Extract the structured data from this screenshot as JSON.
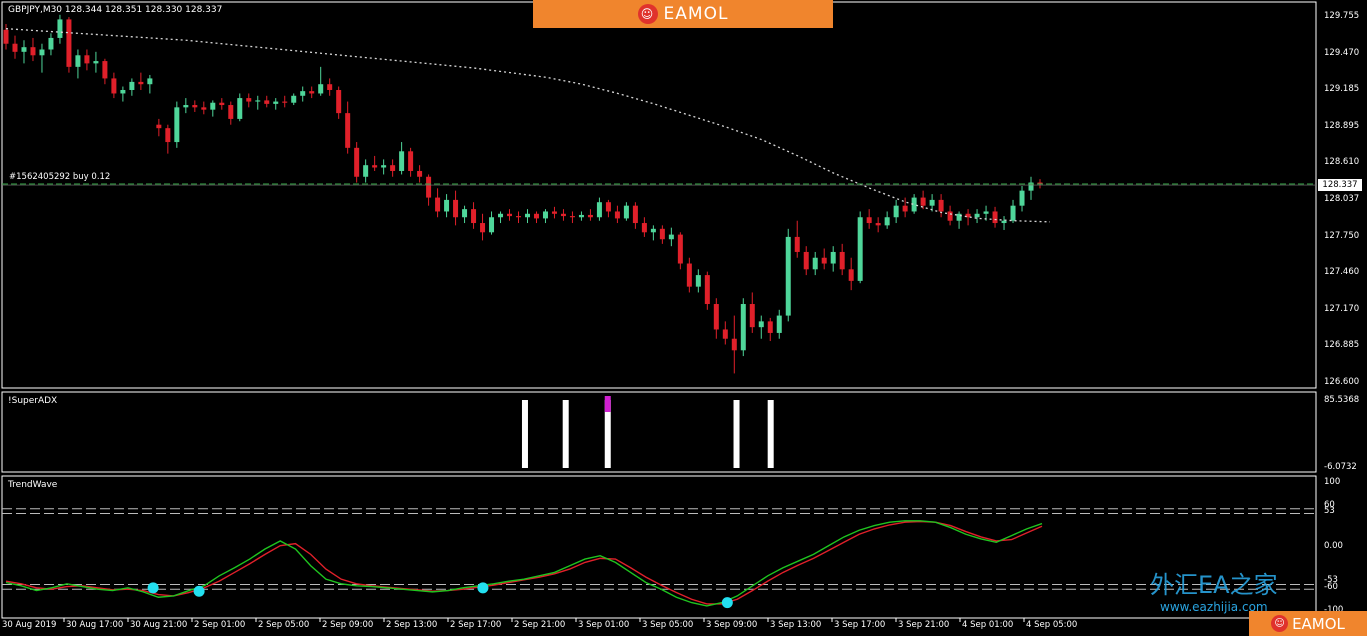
{
  "header": {
    "symbol_info": "GBPJPY,M30  128.344 128.351 128.330 128.337"
  },
  "banner": {
    "text": "EAMOL",
    "logo_icon": "robot-icon"
  },
  "corner_banner": {
    "text": "EAMOL"
  },
  "watermark": {
    "text": "外汇EA之家",
    "url": "www.eazhijia.com"
  },
  "order_line": {
    "label": "#1562405292 buy 0.12"
  },
  "current_price": "128.337",
  "panes": {
    "main": {
      "y_labels": [
        "129.755",
        "129.470",
        "129.185",
        "128.895",
        "128.610",
        "128.037",
        "127.750",
        "127.460",
        "127.170",
        "126.885",
        "126.600"
      ]
    },
    "adx": {
      "label": "!SuperADX",
      "y_labels": [
        "85.5368",
        "-6.0732"
      ]
    },
    "trend": {
      "label": "TrendWave",
      "y_labels": [
        "100",
        "60",
        "53",
        "0.00",
        "-53",
        "-60",
        "-100"
      ]
    }
  },
  "x_labels": [
    "30 Aug 2019",
    "30 Aug 17:00",
    "30 Aug 21:00",
    "2 Sep 01:00",
    "2 Sep 05:00",
    "2 Sep 09:00",
    "2 Sep 13:00",
    "2 Sep 17:00",
    "2 Sep 21:00",
    "3 Sep 01:00",
    "3 Sep 05:00",
    "3 Sep 09:00",
    "3 Sep 13:00",
    "3 Sep 17:00",
    "3 Sep 21:00",
    "4 Sep 01:00",
    "4 Sep 05:00"
  ],
  "colors": {
    "bull": "#4fd69a",
    "bear": "#e0202a",
    "ma": "#d8d8d8",
    "order": "#3aa84a",
    "wave_green": "#1fc41f",
    "wave_red": "#e0202a",
    "dot": "#23e0f0",
    "adx_bar": "#ffffff",
    "adx_top": "#d020d0"
  },
  "chart_data": [
    {
      "type": "candlestick",
      "y_range": [
        126.6,
        129.755
      ],
      "candles": [
        [
          129.67,
          129.72,
          129.5,
          129.55
        ],
        [
          129.55,
          129.62,
          129.42,
          129.48
        ],
        [
          129.48,
          129.58,
          129.38,
          129.52
        ],
        [
          129.52,
          129.6,
          129.4,
          129.45
        ],
        [
          129.45,
          129.55,
          129.3,
          129.5
        ],
        [
          129.5,
          129.64,
          129.45,
          129.6
        ],
        [
          129.6,
          129.8,
          129.55,
          129.76
        ],
        [
          129.76,
          129.78,
          129.3,
          129.35
        ],
        [
          129.35,
          129.5,
          129.25,
          129.45
        ],
        [
          129.45,
          129.5,
          129.32,
          129.38
        ],
        [
          129.38,
          129.48,
          129.3,
          129.4
        ],
        [
          129.4,
          129.42,
          129.2,
          129.25
        ],
        [
          129.25,
          129.3,
          129.08,
          129.12
        ],
        [
          129.12,
          129.18,
          129.05,
          129.15
        ],
        [
          129.15,
          129.25,
          129.1,
          129.22
        ],
        [
          129.22,
          129.3,
          129.15,
          129.2
        ],
        [
          129.2,
          129.28,
          129.12,
          129.25
        ],
        [
          128.85,
          128.9,
          128.75,
          128.82
        ],
        [
          128.82,
          128.85,
          128.6,
          128.7
        ],
        [
          128.7,
          129.05,
          128.65,
          129.0
        ],
        [
          129.0,
          129.08,
          128.95,
          129.02
        ],
        [
          129.02,
          129.06,
          128.96,
          129.0
        ],
        [
          129.0,
          129.05,
          128.94,
          128.98
        ],
        [
          128.98,
          129.06,
          128.92,
          129.04
        ],
        [
          129.04,
          129.08,
          128.98,
          129.02
        ],
        [
          129.02,
          129.05,
          128.85,
          128.9
        ],
        [
          128.9,
          129.12,
          128.88,
          129.08
        ],
        [
          129.08,
          129.12,
          129.0,
          129.05
        ],
        [
          129.05,
          129.1,
          128.98,
          129.06
        ],
        [
          129.06,
          129.1,
          129.0,
          129.03
        ],
        [
          129.03,
          129.08,
          128.98,
          129.05
        ],
        [
          129.05,
          129.1,
          129.0,
          129.04
        ],
        [
          129.04,
          129.12,
          129.02,
          129.1
        ],
        [
          129.1,
          129.18,
          129.05,
          129.14
        ],
        [
          129.14,
          129.18,
          129.08,
          129.12
        ],
        [
          129.12,
          129.35,
          129.1,
          129.2
        ],
        [
          129.2,
          129.25,
          129.1,
          129.15
        ],
        [
          129.15,
          129.18,
          128.9,
          128.95
        ],
        [
          128.95,
          129.05,
          128.6,
          128.65
        ],
        [
          128.65,
          128.7,
          128.35,
          128.4
        ],
        [
          128.4,
          128.55,
          128.35,
          128.5
        ],
        [
          128.5,
          128.58,
          128.45,
          128.48
        ],
        [
          128.48,
          128.55,
          128.42,
          128.5
        ],
        [
          128.5,
          128.55,
          128.4,
          128.45
        ],
        [
          128.45,
          128.7,
          128.42,
          128.62
        ],
        [
          128.62,
          128.65,
          128.4,
          128.45
        ],
        [
          128.45,
          128.5,
          128.35,
          128.4
        ],
        [
          128.4,
          128.42,
          128.15,
          128.22
        ],
        [
          128.22,
          128.3,
          128.05,
          128.1
        ],
        [
          128.1,
          128.25,
          128.05,
          128.2
        ],
        [
          128.2,
          128.28,
          127.98,
          128.05
        ],
        [
          128.05,
          128.15,
          128.0,
          128.12
        ],
        [
          128.12,
          128.18,
          127.95,
          128.0
        ],
        [
          128.0,
          128.08,
          127.85,
          127.92
        ],
        [
          127.92,
          128.1,
          127.9,
          128.05
        ],
        [
          128.05,
          128.1,
          128.0,
          128.08
        ],
        [
          128.08,
          128.12,
          128.02,
          128.06
        ],
        [
          128.06,
          128.1,
          128.0,
          128.05
        ],
        [
          128.05,
          128.12,
          128.0,
          128.08
        ],
        [
          128.08,
          128.1,
          128.0,
          128.04
        ],
        [
          128.04,
          128.12,
          128.0,
          128.1
        ],
        [
          128.1,
          128.14,
          128.04,
          128.08
        ],
        [
          128.08,
          128.12,
          128.02,
          128.06
        ],
        [
          128.06,
          128.1,
          128.0,
          128.05
        ],
        [
          128.05,
          128.1,
          128.02,
          128.07
        ],
        [
          128.07,
          128.12,
          128.02,
          128.05
        ],
        [
          128.05,
          128.22,
          128.02,
          128.18
        ],
        [
          128.18,
          128.2,
          128.05,
          128.1
        ],
        [
          128.1,
          128.15,
          128.0,
          128.04
        ],
        [
          128.04,
          128.18,
          128.02,
          128.15
        ],
        [
          128.15,
          128.18,
          127.95,
          128.0
        ],
        [
          128.0,
          128.05,
          127.88,
          127.92
        ],
        [
          127.92,
          127.98,
          127.85,
          127.95
        ],
        [
          127.95,
          127.98,
          127.82,
          127.86
        ],
        [
          127.86,
          127.96,
          127.8,
          127.9
        ],
        [
          127.9,
          127.92,
          127.6,
          127.65
        ],
        [
          127.65,
          127.7,
          127.4,
          127.45
        ],
        [
          127.45,
          127.6,
          127.4,
          127.55
        ],
        [
          127.55,
          127.58,
          127.25,
          127.3
        ],
        [
          127.3,
          127.35,
          127.0,
          127.08
        ],
        [
          127.08,
          127.15,
          126.95,
          127.0
        ],
        [
          127.0,
          127.2,
          126.7,
          126.9
        ],
        [
          126.9,
          127.35,
          126.85,
          127.3
        ],
        [
          127.3,
          127.4,
          127.05,
          127.1
        ],
        [
          127.1,
          127.2,
          127.0,
          127.15
        ],
        [
          127.15,
          127.18,
          126.98,
          127.05
        ],
        [
          127.05,
          127.25,
          127.0,
          127.2
        ],
        [
          127.2,
          127.95,
          127.15,
          127.88
        ],
        [
          127.88,
          128.02,
          127.7,
          127.75
        ],
        [
          127.75,
          127.8,
          127.55,
          127.6
        ],
        [
          127.6,
          127.75,
          127.55,
          127.7
        ],
        [
          127.7,
          127.78,
          127.6,
          127.65
        ],
        [
          127.65,
          127.8,
          127.58,
          127.75
        ],
        [
          127.75,
          127.82,
          127.55,
          127.6
        ],
        [
          127.6,
          127.7,
          127.42,
          127.5
        ],
        [
          127.5,
          128.1,
          127.48,
          128.05
        ],
        [
          128.05,
          128.12,
          127.95,
          128.0
        ],
        [
          128.0,
          128.05,
          127.92,
          127.98
        ],
        [
          127.98,
          128.1,
          127.95,
          128.05
        ],
        [
          128.05,
          128.2,
          128.0,
          128.15
        ],
        [
          128.15,
          128.22,
          128.05,
          128.1
        ],
        [
          128.1,
          128.25,
          128.08,
          128.22
        ],
        [
          128.22,
          128.28,
          128.12,
          128.15
        ],
        [
          128.15,
          128.25,
          128.1,
          128.2
        ],
        [
          128.2,
          128.25,
          128.05,
          128.1
        ],
        [
          128.1,
          128.15,
          127.98,
          128.02
        ],
        [
          128.02,
          128.1,
          127.95,
          128.08
        ],
        [
          128.08,
          128.12,
          127.98,
          128.05
        ],
        [
          128.05,
          128.12,
          128.0,
          128.08
        ],
        [
          128.08,
          128.15,
          128.02,
          128.1
        ],
        [
          128.1,
          128.14,
          127.96,
          128.0
        ],
        [
          128.0,
          128.06,
          127.94,
          128.02
        ],
        [
          128.02,
          128.2,
          128.0,
          128.15
        ],
        [
          128.15,
          128.32,
          128.1,
          128.28
        ],
        [
          128.28,
          128.4,
          128.2,
          128.35
        ],
        [
          128.35,
          128.38,
          128.3,
          128.337
        ]
      ],
      "moving_average": [
        129.68,
        129.66,
        129.64,
        129.62,
        129.6,
        129.58,
        129.55,
        129.52,
        129.49,
        129.46,
        129.43,
        129.4,
        129.37,
        129.34,
        129.3,
        129.26,
        129.2,
        129.12,
        129.03,
        128.93,
        128.83,
        128.72,
        128.58,
        128.43,
        128.3,
        128.18,
        128.09,
        128.04,
        128.02,
        128.01
      ],
      "order_price": 128.337
    },
    {
      "type": "bar",
      "name": "!SuperADX",
      "y_range": [
        -6.0732,
        85.5368
      ],
      "bars": [
        {
          "pos": 0.398,
          "value": 1,
          "top": 0
        },
        {
          "pos": 0.429,
          "value": 1,
          "top": 0
        },
        {
          "pos": 0.461,
          "value": 1,
          "top": 1
        },
        {
          "pos": 0.559,
          "value": 1,
          "top": 0
        },
        {
          "pos": 0.585,
          "value": 1,
          "top": 0
        }
      ]
    },
    {
      "type": "line",
      "name": "TrendWave",
      "y_range": [
        -100,
        100
      ],
      "levels": [
        60,
        53,
        -53,
        -60
      ],
      "green": [
        -50,
        -55,
        -62,
        -58,
        -52,
        -56,
        -60,
        -62,
        -58,
        -64,
        -72,
        -70,
        -62,
        -55,
        -40,
        -28,
        -15,
        0,
        12,
        0,
        -25,
        -45,
        -52,
        -55,
        -56,
        -58,
        -60,
        -62,
        -64,
        -62,
        -58,
        -55,
        -52,
        -48,
        -45,
        -40,
        -35,
        -25,
        -15,
        -10,
        -20,
        -35,
        -50,
        -60,
        -72,
        -80,
        -85,
        -80,
        -70,
        -55,
        -40,
        -28,
        -18,
        -8,
        5,
        18,
        28,
        35,
        40,
        42,
        42,
        40,
        32,
        22,
        15,
        10,
        20,
        30,
        38
      ],
      "red": [
        -48,
        -52,
        -58,
        -60,
        -56,
        -55,
        -58,
        -61,
        -60,
        -62,
        -68,
        -70,
        -65,
        -58,
        -48,
        -35,
        -22,
        -8,
        5,
        8,
        -8,
        -30,
        -45,
        -52,
        -55,
        -57,
        -59,
        -61,
        -63,
        -62,
        -60,
        -57,
        -54,
        -50,
        -46,
        -42,
        -37,
        -30,
        -20,
        -14,
        -15,
        -28,
        -42,
        -54,
        -65,
        -75,
        -82,
        -82,
        -75,
        -62,
        -48,
        -35,
        -24,
        -14,
        -2,
        10,
        22,
        30,
        36,
        40,
        41,
        40,
        35,
        26,
        18,
        12,
        14,
        24,
        34
      ],
      "signal_dots": [
        {
          "pos": 0.115,
          "value": -58
        },
        {
          "pos": 0.15,
          "value": -63
        },
        {
          "pos": 0.366,
          "value": -58
        },
        {
          "pos": 0.552,
          "value": -80
        }
      ]
    }
  ]
}
